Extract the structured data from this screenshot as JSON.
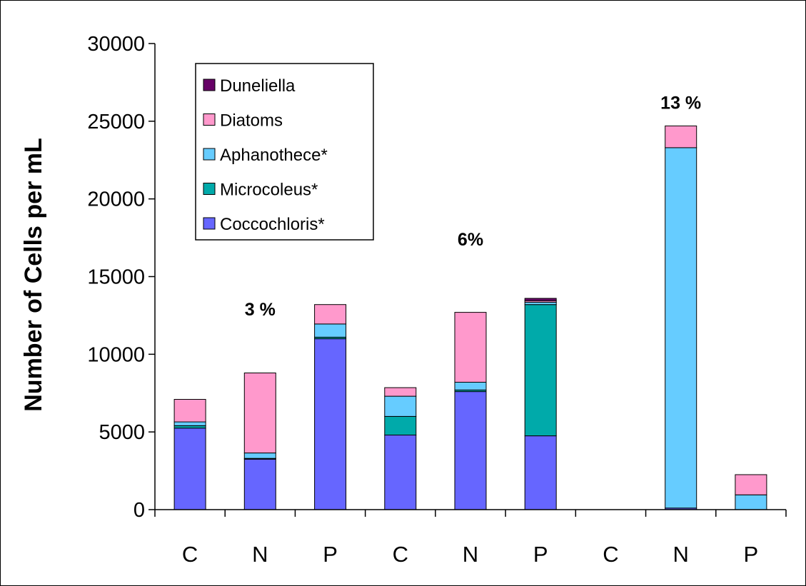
{
  "chart_data": {
    "type": "bar",
    "stacked": true,
    "categories": [
      "C",
      "N",
      "P",
      "C",
      "N",
      "P",
      "C",
      "N",
      "P"
    ],
    "ylabel": "Number of Cells per mL",
    "xlabel": "",
    "title": "",
    "ylim": [
      0,
      30000
    ],
    "yticks": [
      0,
      5000,
      10000,
      15000,
      20000,
      25000,
      30000
    ],
    "ytick_labels": [
      "0",
      "5000",
      "10000",
      "15000",
      "20000",
      "25000",
      "30000"
    ],
    "legend_position": "top-left inside",
    "grid": false,
    "series": [
      {
        "name": "Coccochloris*",
        "color": "#6666ff",
        "values": [
          5250,
          3250,
          11000,
          4800,
          7600,
          4750,
          0,
          100,
          0
        ]
      },
      {
        "name": "Microcoleus*",
        "color": "#00aaaa",
        "values": [
          150,
          50,
          100,
          1200,
          100,
          8450,
          0,
          0,
          0
        ]
      },
      {
        "name": "Aphanothece*",
        "color": "#66ccff",
        "values": [
          250,
          350,
          850,
          1300,
          500,
          150,
          0,
          23200,
          950
        ]
      },
      {
        "name": "Diatoms",
        "color": "#ff99cc",
        "values": [
          1450,
          5150,
          1250,
          550,
          4500,
          100,
          0,
          1400,
          1300
        ]
      },
      {
        "name": "Duneliella",
        "color": "#660066",
        "values": [
          0,
          0,
          0,
          0,
          0,
          150,
          0,
          0,
          0
        ]
      }
    ],
    "annotations": [
      {
        "text": "3 %",
        "x_index": 1,
        "y": 12500
      },
      {
        "text": "6%",
        "x_index": 4,
        "y": 17000
      },
      {
        "text": "13 %",
        "x_index": 7,
        "y": 25800
      }
    ]
  }
}
